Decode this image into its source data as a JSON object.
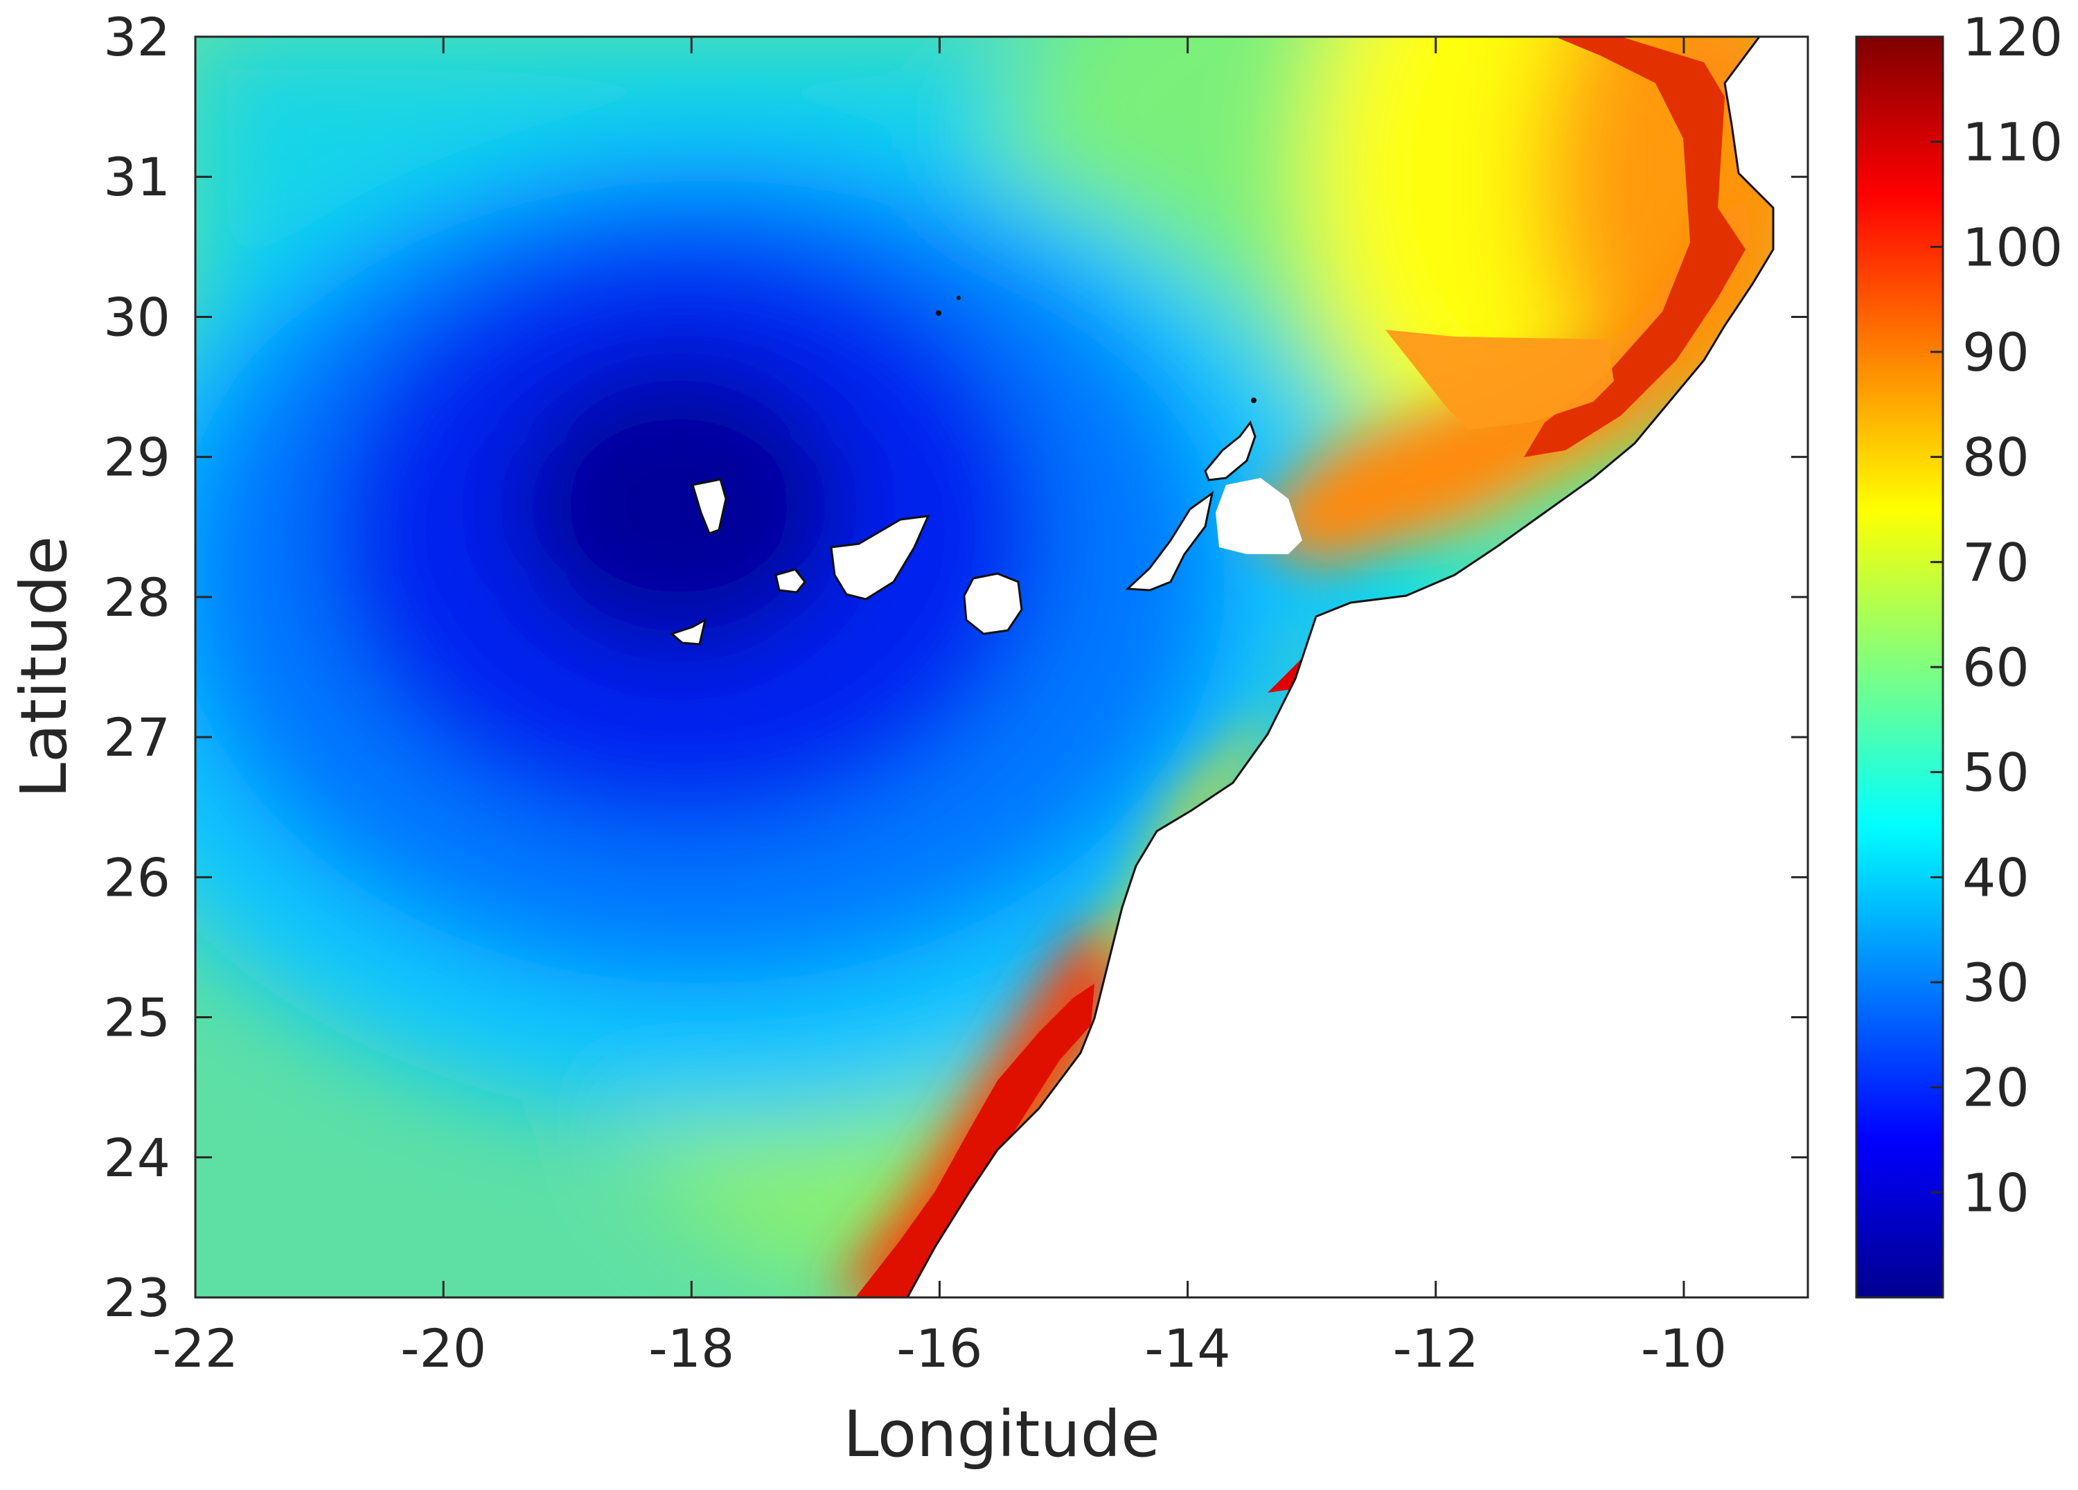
{
  "chart_data": {
    "type": "heatmap",
    "xlabel": "Longitude",
    "ylabel": "Latitude",
    "xlim": [
      -22,
      -9
    ],
    "ylim": [
      23,
      32
    ],
    "x_ticks": [
      -22,
      -20,
      -18,
      -16,
      -14,
      -12,
      -10
    ],
    "x_tick_labels": [
      "-22",
      "-20",
      "-18",
      "-16",
      "-14",
      "-12",
      "-10"
    ],
    "y_ticks": [
      23,
      24,
      25,
      26,
      27,
      28,
      29,
      30,
      31,
      32
    ],
    "y_tick_labels": [
      "23",
      "24",
      "25",
      "26",
      "27",
      "28",
      "29",
      "30",
      "31",
      "32"
    ],
    "colorbar": {
      "colormap": "jet",
      "range": [
        0,
        120
      ],
      "ticks": [
        10,
        20,
        30,
        40,
        50,
        60,
        70,
        80,
        90,
        100,
        110,
        120
      ],
      "tick_labels": [
        "10",
        "20",
        "30",
        "40",
        "50",
        "60",
        "70",
        "80",
        "90",
        "100",
        "110",
        "120"
      ],
      "position": "right"
    },
    "field": {
      "minimum": {
        "lon": -18.2,
        "lat": 28.4,
        "value": 2
      },
      "nw_corner": {
        "lon": -22,
        "lat": 32,
        "value": 40
      },
      "sw_corner": {
        "lon": -22,
        "lat": 23,
        "value": 58
      },
      "ne_coast": {
        "lon": -9.8,
        "lat": 31.5,
        "value": 100
      },
      "se_coast": {
        "lon": -16.5,
        "lat": 23.5,
        "value": 115
      }
    },
    "islands": [
      "La Palma",
      "El Hierro",
      "La Gomera",
      "Tenerife",
      "Gran Canaria",
      "Fuerteventura",
      "Lanzarote"
    ],
    "land": "African coast (white)",
    "grid": false
  }
}
